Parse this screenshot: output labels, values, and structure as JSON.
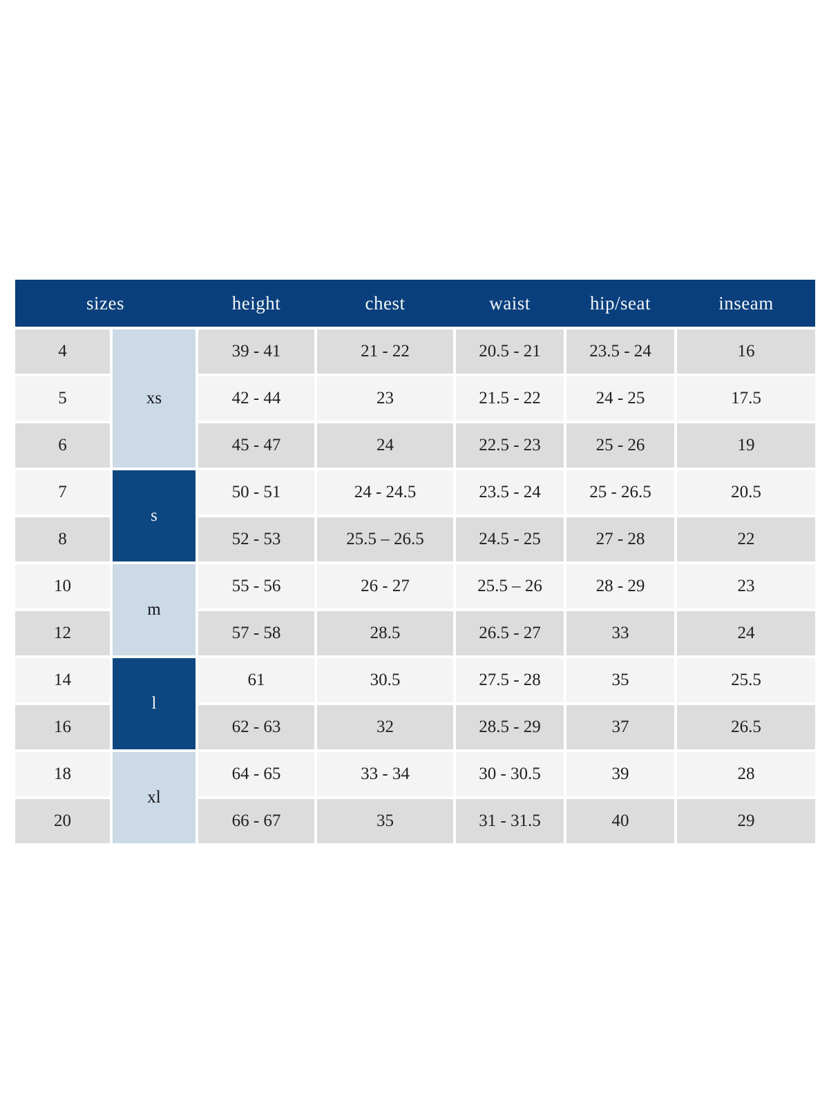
{
  "table": {
    "header_labels": [
      "sizes",
      "height",
      "chest",
      "waist",
      "hip/seat",
      "inseam"
    ],
    "columns_keys": [
      "height",
      "chest",
      "waist",
      "hip_seat",
      "inseam"
    ],
    "groups": [
      {
        "label": "xs",
        "span": 3,
        "tone": "light"
      },
      {
        "label": "s",
        "span": 2,
        "tone": "dark"
      },
      {
        "label": "m",
        "span": 2,
        "tone": "light"
      },
      {
        "label": "l",
        "span": 2,
        "tone": "dark"
      },
      {
        "label": "xl",
        "span": 2,
        "tone": "light"
      }
    ],
    "rows": [
      {
        "size": "4",
        "height": "39 - 41",
        "chest": "21 - 22",
        "waist": "20.5 - 21",
        "hip_seat": "23.5 - 24",
        "inseam": "16"
      },
      {
        "size": "5",
        "height": "42 - 44",
        "chest": "23",
        "waist": "21.5 - 22",
        "hip_seat": "24 - 25",
        "inseam": "17.5"
      },
      {
        "size": "6",
        "height": "45 - 47",
        "chest": "24",
        "waist": "22.5 - 23",
        "hip_seat": "25 - 26",
        "inseam": "19"
      },
      {
        "size": "7",
        "height": "50 - 51",
        "chest": "24 - 24.5",
        "waist": "23.5 - 24",
        "hip_seat": "25 - 26.5",
        "inseam": "20.5"
      },
      {
        "size": "8",
        "height": "52 - 53",
        "chest": "25.5 – 26.5",
        "waist": "24.5 - 25",
        "hip_seat": "27 - 28",
        "inseam": "22"
      },
      {
        "size": "10",
        "height": "55 - 56",
        "chest": "26 - 27",
        "waist": "25.5 – 26",
        "hip_seat": "28 - 29",
        "inseam": "23"
      },
      {
        "size": "12",
        "height": "57 - 58",
        "chest": "28.5",
        "waist": "26.5 - 27",
        "hip_seat": "33",
        "inseam": "24"
      },
      {
        "size": "14",
        "height": "61",
        "chest": "30.5",
        "waist": "27.5 - 28",
        "hip_seat": "35",
        "inseam": "25.5"
      },
      {
        "size": "16",
        "height": "62 - 63",
        "chest": "32",
        "waist": "28.5 - 29",
        "hip_seat": "37",
        "inseam": "26.5"
      },
      {
        "size": "18",
        "height": "64 - 65",
        "chest": "33 - 34",
        "waist": "30 - 30.5",
        "hip_seat": "39",
        "inseam": "28"
      },
      {
        "size": "20",
        "height": "66 - 67",
        "chest": "35",
        "waist": "31 - 31.5",
        "hip_seat": "40",
        "inseam": "29"
      }
    ]
  },
  "colors": {
    "header_bg": "#093f7c",
    "header_text": "#f3f6fa",
    "group_dark": "#0d4680",
    "group_light": "#ccd9e6",
    "row_dark": "#dcdcdc",
    "row_light": "#f4f4f4"
  }
}
